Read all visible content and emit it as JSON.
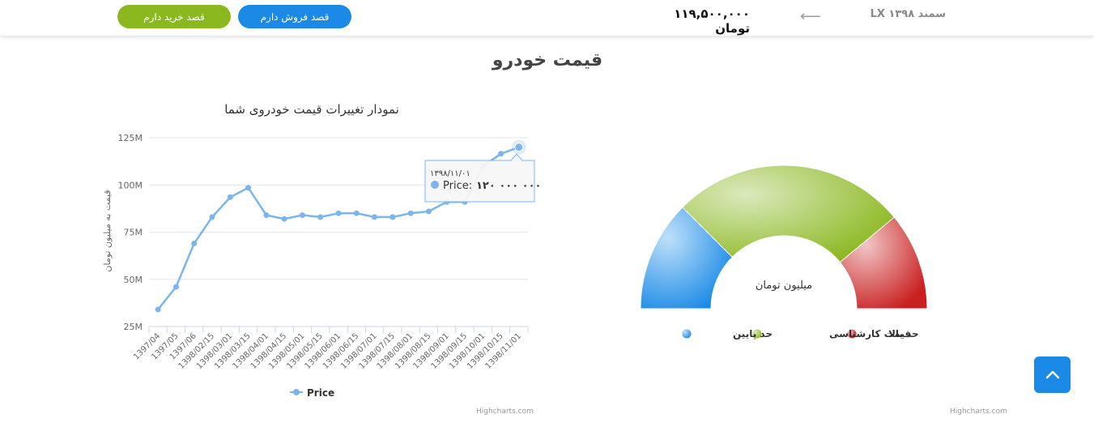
{
  "header": {
    "buy_label": "قصد خرید دارم",
    "sell_label": "قصد فروش دارم",
    "price": "۱۱۹,۵۰۰,۰۰۰ تومان",
    "car_name": "سمند LX ۱۳۹۸",
    "arrow": "⟵"
  },
  "page_title": "قیمت خودرو",
  "chart_data": [
    {
      "type": "line",
      "title": "نمودار تغییرات قیمت خودروی شما",
      "ylabel": "قیمت به میلیون تومان",
      "xlabel": "",
      "ylim": [
        25,
        125
      ],
      "yticks": [
        "25M",
        "50M",
        "75M",
        "100M",
        "125M"
      ],
      "categories": [
        "1397/04",
        "1397/05",
        "1397/06",
        "1398/02/15",
        "1398/03/01",
        "1398/03/15",
        "1398/04/01",
        "1398/04/15",
        "1398/05/01",
        "1398/05/15",
        "1398/06/01",
        "1398/06/15",
        "1398/07/01",
        "1398/07/15",
        "1398/08/01",
        "1398/08/15",
        "1398/09/01",
        "1398/09/15",
        "1398/10/01",
        "1398/10/15",
        "1398/11/01"
      ],
      "series": [
        {
          "name": "Price",
          "color": "#7cb5ec",
          "values": [
            34,
            46,
            69,
            83,
            93.5,
            98.5,
            84,
            82,
            84,
            83,
            85,
            85,
            83,
            83,
            85,
            86,
            91,
            91,
            110,
            116.5,
            120
          ]
        }
      ],
      "tooltip": {
        "date": "۱۳۹۸/۱۱/۰۱",
        "label": "Price:",
        "value": "۱۲۰ ۰۰۰ ۰۰۰",
        "index": 20
      },
      "legend": "bottom-center",
      "grid": true,
      "credit": "Highcharts.com"
    },
    {
      "type": "gauge",
      "center_label": "میلیون تومان",
      "legend": "bottom-center",
      "bands": [
        {
          "name": "حد پایین",
          "color": "#1a8ae6"
        },
        {
          "name": "قیمت کارشناسی",
          "color": "#8bb81f"
        },
        {
          "name": "حد بالا",
          "color": "#d42a2a"
        }
      ],
      "band_split_fractions": [
        0.25,
        0.78
      ],
      "credit": "Highcharts.com"
    }
  ],
  "scroll_top_icon": "chevron-up-icon"
}
